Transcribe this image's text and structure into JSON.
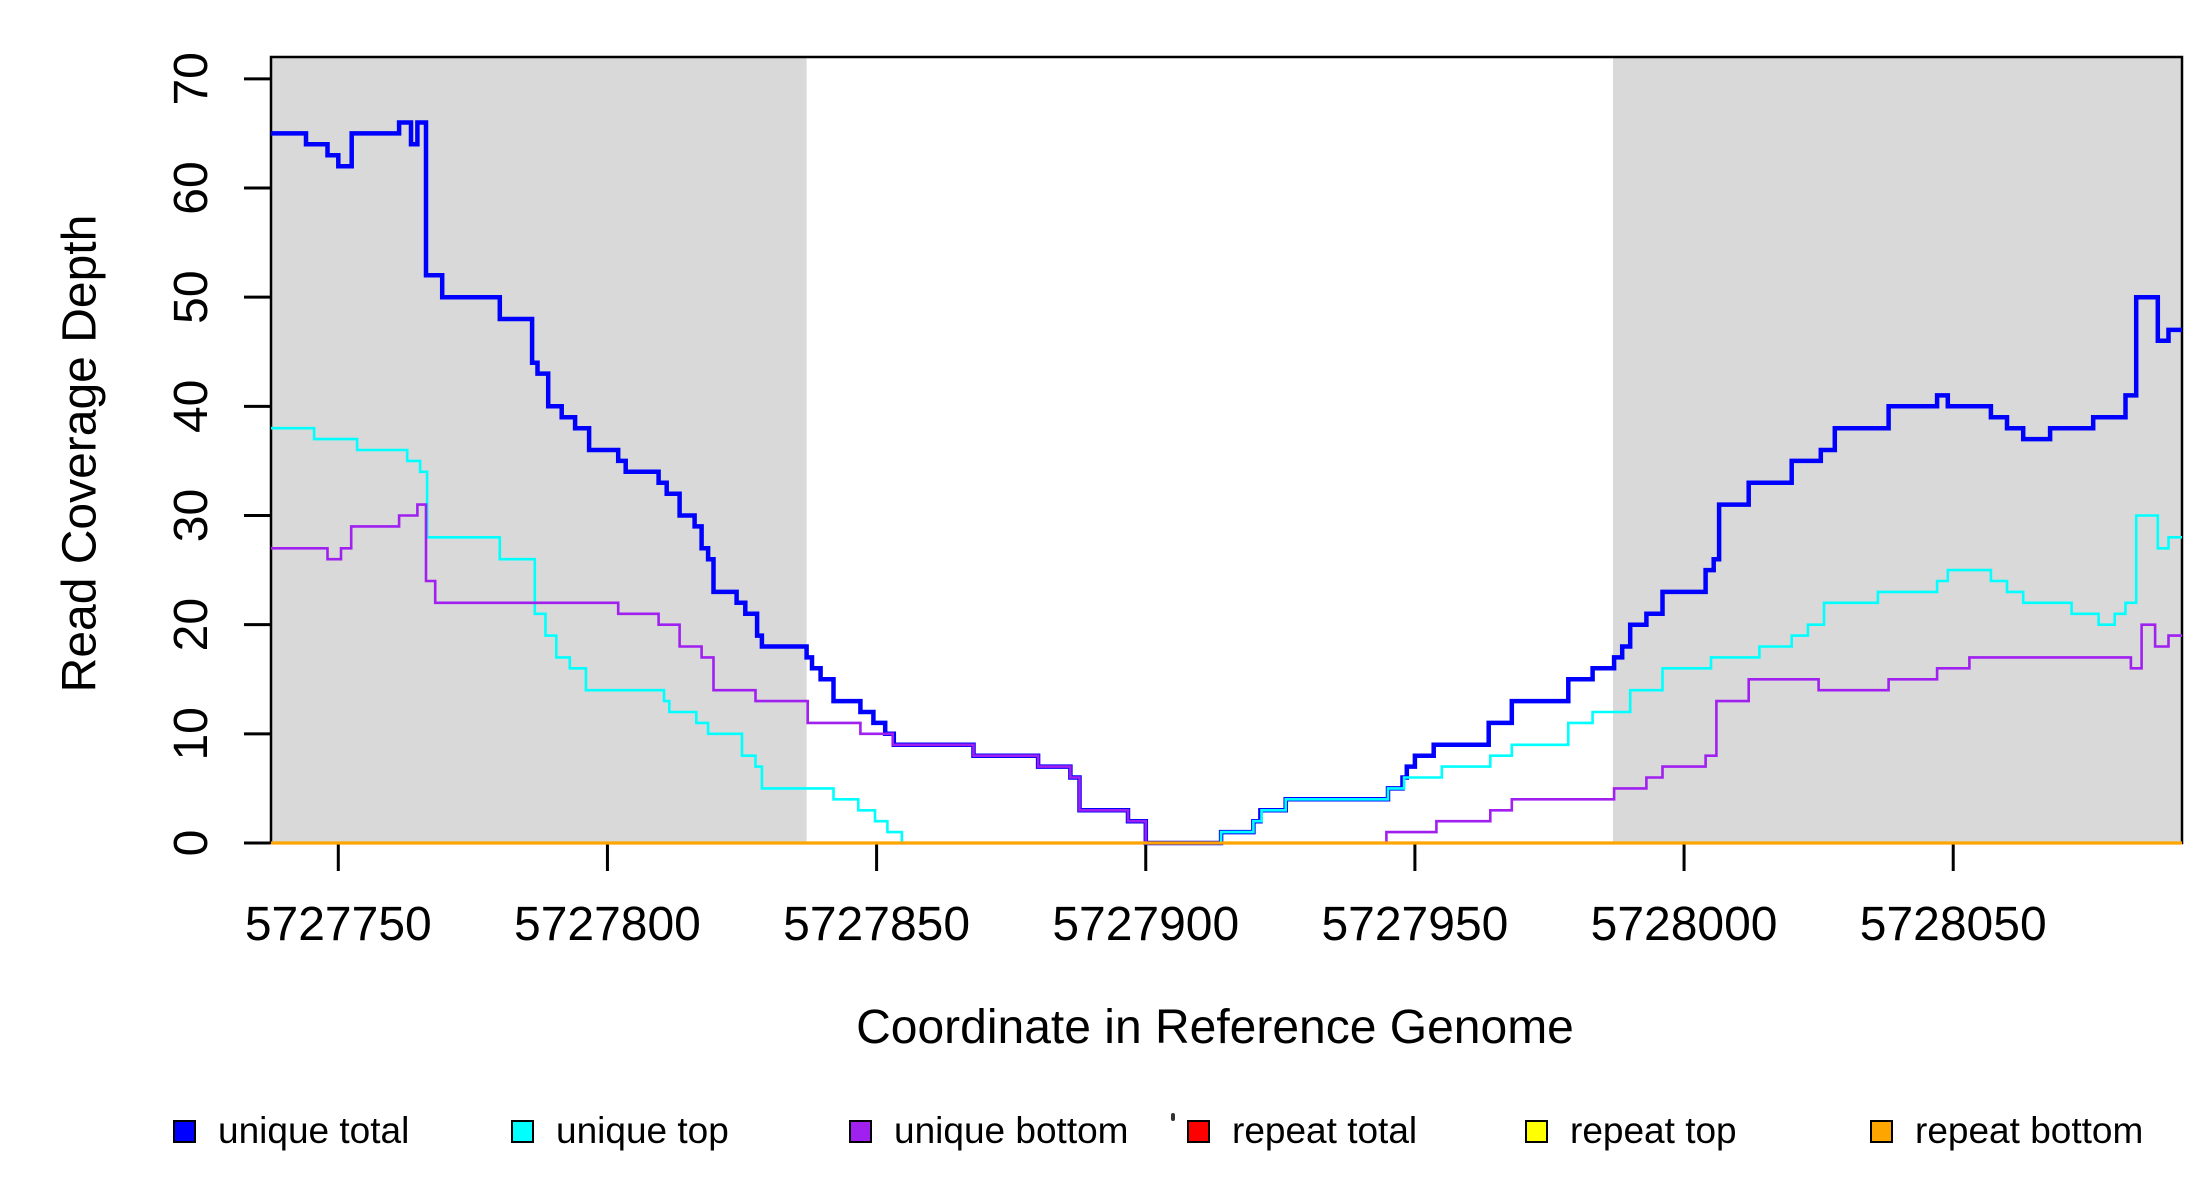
{
  "chart_data": {
    "type": "step-line",
    "title": "",
    "xlabel": "Coordinate in Reference Genome",
    "ylabel": "Read Coverage Depth",
    "xlim": [
      5727737.5,
      5728092.5
    ],
    "ylim": [
      0,
      72
    ],
    "grid": false,
    "legend_position": "bottom",
    "x_ticks": [
      5727750,
      5727800,
      5727850,
      5727900,
      5727950,
      5728000,
      5728050
    ],
    "x_tick_labels": [
      "5727750",
      "5727800",
      "5727850",
      "5727900",
      "5727950",
      "5728000",
      "5728050"
    ],
    "y_ticks": [
      0,
      10,
      20,
      30,
      40,
      50,
      60,
      70
    ],
    "y_tick_labels": [
      "0",
      "10",
      "20",
      "30",
      "40",
      "50",
      "60",
      "70"
    ],
    "shaded_color": "#d9d9d9",
    "shaded_regions": [
      {
        "name": "left-unique-block",
        "x0": 5727737.5,
        "x1": 5727837
      },
      {
        "name": "right-unique-block",
        "x0": 5727986.8,
        "x1": 5728092.5
      }
    ],
    "series": [
      {
        "name": "unique-total",
        "label": "unique total",
        "color": "#0000ff",
        "width": 4.5,
        "points": [
          [
            5727737.5,
            65
          ],
          [
            5727744,
            64
          ],
          [
            5727748,
            63
          ],
          [
            5727750,
            62
          ],
          [
            5727752.5,
            65
          ],
          [
            5727761.3,
            66
          ],
          [
            5727763.5,
            64
          ],
          [
            5727764.7,
            66
          ],
          [
            5727766.3,
            52
          ],
          [
            5727769.3,
            50
          ],
          [
            5727780,
            48
          ],
          [
            5727786,
            44
          ],
          [
            5727787,
            43
          ],
          [
            5727789,
            40
          ],
          [
            5727791.5,
            39
          ],
          [
            5727794,
            38
          ],
          [
            5727796.6,
            36
          ],
          [
            5727802,
            35
          ],
          [
            5727803.4,
            34
          ],
          [
            5727809.5,
            33
          ],
          [
            5727811,
            32
          ],
          [
            5727813.4,
            30
          ],
          [
            5727816.2,
            29
          ],
          [
            5727817.5,
            27
          ],
          [
            5727818.7,
            26
          ],
          [
            5727819.7,
            23
          ],
          [
            5727824,
            22
          ],
          [
            5727825.6,
            21
          ],
          [
            5727827.8,
            19
          ],
          [
            5727828.7,
            18
          ],
          [
            5727837,
            17
          ],
          [
            5727838,
            16
          ],
          [
            5727839.6,
            15
          ],
          [
            5727842,
            13
          ],
          [
            5727847,
            12
          ],
          [
            5727849.4,
            11
          ],
          [
            5727851.6,
            10
          ],
          [
            5727853.2,
            9
          ],
          [
            5727868,
            8
          ],
          [
            5727880,
            7
          ],
          [
            5727886,
            6
          ],
          [
            5727887.7,
            3
          ],
          [
            5727896.7,
            2
          ],
          [
            5727900,
            0
          ],
          [
            5727914,
            1
          ],
          [
            5727920,
            2
          ],
          [
            5727921.3,
            3
          ],
          [
            5727926,
            4
          ],
          [
            5727945,
            5
          ],
          [
            5727947.7,
            6
          ],
          [
            5727948.5,
            7
          ],
          [
            5727950,
            8
          ],
          [
            5727953.5,
            9
          ],
          [
            5727963.7,
            11
          ],
          [
            5727968,
            13
          ],
          [
            5727978.5,
            15
          ],
          [
            5727983,
            16
          ],
          [
            5727987,
            17
          ],
          [
            5727988.5,
            18
          ],
          [
            5727990,
            20
          ],
          [
            5727993,
            21
          ],
          [
            5727996,
            23
          ],
          [
            5728004,
            25
          ],
          [
            5728005.5,
            26
          ],
          [
            5728006.5,
            31
          ],
          [
            5728012,
            33
          ],
          [
            5728020,
            35
          ],
          [
            5728025.4,
            36
          ],
          [
            5728028,
            38
          ],
          [
            5728038,
            40
          ],
          [
            5728047,
            41
          ],
          [
            5728049,
            40
          ],
          [
            5728057,
            39
          ],
          [
            5728060,
            38
          ],
          [
            5728063,
            37
          ],
          [
            5728068,
            38
          ],
          [
            5728076,
            39
          ],
          [
            5728082,
            41
          ],
          [
            5728084,
            50
          ],
          [
            5728088,
            46
          ],
          [
            5728090,
            47
          ],
          [
            5728092.5,
            47
          ]
        ]
      },
      {
        "name": "unique-top",
        "label": "unique top",
        "color": "#00ffff",
        "width": 2.6,
        "points": [
          [
            5727737.5,
            38
          ],
          [
            5727745.5,
            37
          ],
          [
            5727753.5,
            36
          ],
          [
            5727762.8,
            35
          ],
          [
            5727765.2,
            34
          ],
          [
            5727766.5,
            28
          ],
          [
            5727780,
            26
          ],
          [
            5727786.5,
            21
          ],
          [
            5727788.5,
            19
          ],
          [
            5727790.5,
            17
          ],
          [
            5727793,
            16
          ],
          [
            5727796,
            14
          ],
          [
            5727810.5,
            13
          ],
          [
            5727811.5,
            12
          ],
          [
            5727816.5,
            11
          ],
          [
            5727818.7,
            10
          ],
          [
            5727825,
            8
          ],
          [
            5727827.5,
            7
          ],
          [
            5727828.7,
            5
          ],
          [
            5727842,
            4
          ],
          [
            5727846.6,
            3
          ],
          [
            5727849.7,
            2
          ],
          [
            5727852,
            1
          ],
          [
            5727854.7,
            0
          ],
          [
            5727914,
            1
          ],
          [
            5727920,
            2
          ],
          [
            5727921.5,
            3
          ],
          [
            5727926,
            4
          ],
          [
            5727945,
            5
          ],
          [
            5727948,
            6
          ],
          [
            5727955,
            7
          ],
          [
            5727964,
            8
          ],
          [
            5727968,
            9
          ],
          [
            5727978.5,
            11
          ],
          [
            5727983,
            12
          ],
          [
            5727990,
            14
          ],
          [
            5727996,
            16
          ],
          [
            5728005,
            17
          ],
          [
            5728014,
            18
          ],
          [
            5728020,
            19
          ],
          [
            5728023,
            20
          ],
          [
            5728026,
            22
          ],
          [
            5728036,
            23
          ],
          [
            5728047,
            24
          ],
          [
            5728049,
            25
          ],
          [
            5728057,
            24
          ],
          [
            5728060,
            23
          ],
          [
            5728063,
            22
          ],
          [
            5728072,
            21
          ],
          [
            5728077,
            20
          ],
          [
            5728080,
            21
          ],
          [
            5728082,
            22
          ],
          [
            5728084,
            30
          ],
          [
            5728088,
            27
          ],
          [
            5728090,
            28
          ],
          [
            5728092.5,
            28
          ]
        ]
      },
      {
        "name": "unique-bottom",
        "label": "unique bottom",
        "color": "#a020f0",
        "width": 2.6,
        "points": [
          [
            5727737.5,
            27
          ],
          [
            5727748,
            26
          ],
          [
            5727750.5,
            27
          ],
          [
            5727752.4,
            29
          ],
          [
            5727761.3,
            30
          ],
          [
            5727764.7,
            31
          ],
          [
            5727766.3,
            24
          ],
          [
            5727768,
            22
          ],
          [
            5727802,
            21
          ],
          [
            5727809.5,
            20
          ],
          [
            5727813.4,
            18
          ],
          [
            5727817.5,
            17
          ],
          [
            5727819.7,
            14
          ],
          [
            5727827.5,
            13
          ],
          [
            5727837.2,
            11
          ],
          [
            5727847,
            10
          ],
          [
            5727853,
            9
          ],
          [
            5727868,
            8
          ],
          [
            5727880,
            7
          ],
          [
            5727886,
            6
          ],
          [
            5727887.7,
            3
          ],
          [
            5727896.7,
            2
          ],
          [
            5727900,
            0
          ],
          [
            5727944.7,
            1
          ],
          [
            5727954,
            2
          ],
          [
            5727964,
            3
          ],
          [
            5727968,
            4
          ],
          [
            5727987,
            5
          ],
          [
            5727993,
            6
          ],
          [
            5727996,
            7
          ],
          [
            5728004,
            8
          ],
          [
            5728006,
            13
          ],
          [
            5728012,
            15
          ],
          [
            5728025,
            14
          ],
          [
            5728038,
            15
          ],
          [
            5728047,
            16
          ],
          [
            5728053,
            17
          ],
          [
            5728083,
            16
          ],
          [
            5728085,
            20
          ],
          [
            5728087.5,
            18
          ],
          [
            5728090,
            19
          ],
          [
            5728092.5,
            19
          ]
        ]
      },
      {
        "name": "repeat-total",
        "label": "repeat total",
        "color": "#ff0000",
        "width": 2.6,
        "points": [
          [
            5727737.5,
            0
          ],
          [
            5728092.5,
            0
          ]
        ]
      },
      {
        "name": "repeat-top",
        "label": "repeat top",
        "color": "#ffff00",
        "width": 2.6,
        "points": [
          [
            5727737.5,
            0
          ],
          [
            5728092.5,
            0
          ]
        ]
      },
      {
        "name": "repeat-bottom",
        "label": "repeat bottom",
        "color": "#ffa500",
        "width": 3.2,
        "points": [
          [
            5727737.5,
            0
          ],
          [
            5728092.5,
            0
          ]
        ]
      }
    ]
  },
  "colors": {
    "background": "#ffffff",
    "axis": "#000000",
    "text": "#000000",
    "panel_shade": "#d9d9d9"
  }
}
